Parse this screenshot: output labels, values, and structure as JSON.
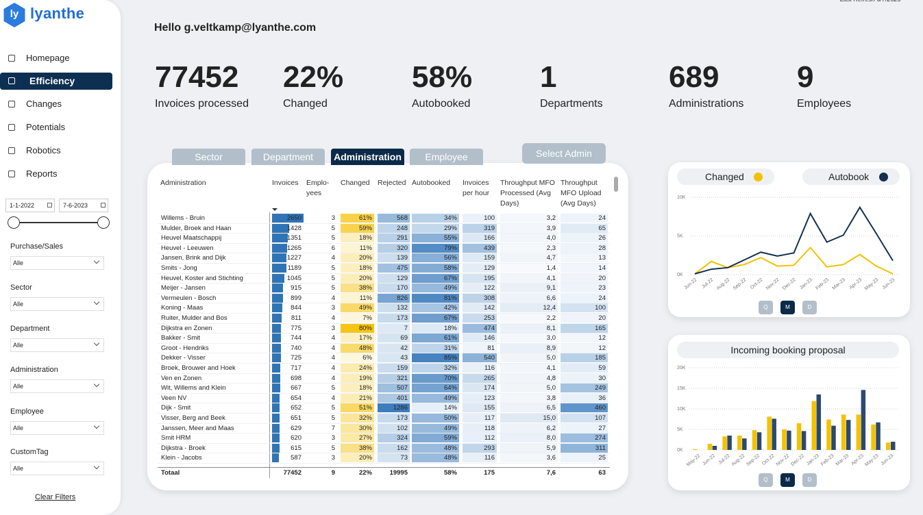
{
  "logo": {
    "icon": "ly",
    "name": "lyanthe"
  },
  "last_refresh": "Last Refresh 6/7/2023",
  "nav": [
    "Homepage",
    "Efficiency",
    "Changes",
    "Potentials",
    "Robotics",
    "Reports"
  ],
  "active_nav": 1,
  "date_range": [
    "1-1-2022",
    "7-6-2023"
  ],
  "filters": [
    {
      "label": "Purchase/Sales",
      "value": "Alle"
    },
    {
      "label": "Sector",
      "value": "Alle"
    },
    {
      "label": "Department",
      "value": "Alle"
    },
    {
      "label": "Administration",
      "value": "Alle"
    },
    {
      "label": "Employee",
      "value": "Alle"
    },
    {
      "label": "CustomTag",
      "value": "Alle"
    }
  ],
  "clear_filters": "Clear Filters",
  "greeting": "Hello g.veltkamp@lyanthe.com",
  "kpis": [
    {
      "value": "77452",
      "label": "Invoices processed"
    },
    {
      "value": "22%",
      "label": "Changed"
    },
    {
      "value": "58%",
      "label": "Autobooked"
    },
    {
      "value": "1",
      "label": "Departments"
    },
    {
      "value": "689",
      "label": "Administrations"
    },
    {
      "value": "9",
      "label": "Employees"
    }
  ],
  "tabs": [
    "Sector",
    "Department",
    "Administration",
    "Employee"
  ],
  "active_tab": 2,
  "select_button": "Select Admin",
  "table": {
    "columns": [
      "Administration",
      "Invoices",
      "Emplo-yees",
      "Changed",
      "Rejected",
      "Autobooked",
      "Invoices per hour",
      "Throughput MFO Processed (Avg Days)",
      "Throughput MFO Upload (Avg Days)"
    ],
    "rows": [
      [
        "Willems - Bruin",
        "2650",
        "3",
        "61%",
        "568",
        "34%",
        "100",
        "3,2",
        "24"
      ],
      [
        "Mulder, Broek and Haan",
        "1428",
        "5",
        "59%",
        "248",
        "29%",
        "319",
        "3,9",
        "65"
      ],
      [
        "Heuvel Maatschappij",
        "1351",
        "5",
        "18%",
        "291",
        "55%",
        "166",
        "4,0",
        "26"
      ],
      [
        "Heuvel - Leeuwen",
        "1265",
        "6",
        "11%",
        "320",
        "79%",
        "439",
        "2,3",
        "28"
      ],
      [
        "Jansen, Brink and Dijk",
        "1227",
        "4",
        "20%",
        "139",
        "56%",
        "159",
        "4,7",
        "13"
      ],
      [
        "Smits - Jong",
        "1189",
        "5",
        "18%",
        "475",
        "58%",
        "129",
        "1,4",
        "14"
      ],
      [
        "Heuvel, Koster and Stichting",
        "1045",
        "5",
        "20%",
        "129",
        "67%",
        "195",
        "4,1",
        "20"
      ],
      [
        "Meijer - Jansen",
        "915",
        "5",
        "38%",
        "170",
        "49%",
        "122",
        "9,1",
        "23"
      ],
      [
        "Vermeulen - Bosch",
        "899",
        "4",
        "11%",
        "826",
        "81%",
        "308",
        "6,6",
        "24"
      ],
      [
        "Koning - Maas",
        "844",
        "3",
        "49%",
        "132",
        "42%",
        "142",
        "12,4",
        "100"
      ],
      [
        "Ruiter, Mulder and Bos",
        "811",
        "4",
        "7%",
        "173",
        "67%",
        "253",
        "2,2",
        "20"
      ],
      [
        "Dijkstra en Zonen",
        "775",
        "3",
        "80%",
        "7",
        "18%",
        "474",
        "8,1",
        "165"
      ],
      [
        "Bakker - Smit",
        "744",
        "4",
        "17%",
        "69",
        "61%",
        "146",
        "3,0",
        "12"
      ],
      [
        "Groot - Hendriks",
        "740",
        "4",
        "48%",
        "42",
        "31%",
        "81",
        "8,9",
        "12"
      ],
      [
        "Dekker - Visser",
        "725",
        "4",
        "6%",
        "43",
        "85%",
        "540",
        "5,0",
        "185"
      ],
      [
        "Broek, Brouwer and Hoek",
        "717",
        "4",
        "24%",
        "159",
        "32%",
        "116",
        "4,1",
        "59"
      ],
      [
        "Ven en Zonen",
        "698",
        "4",
        "19%",
        "321",
        "70%",
        "265",
        "4,8",
        "30"
      ],
      [
        "Wit, Willems and Klein",
        "667",
        "5",
        "18%",
        "507",
        "64%",
        "174",
        "5,0",
        "249"
      ],
      [
        "Veen NV",
        "654",
        "4",
        "21%",
        "401",
        "49%",
        "123",
        "3,8",
        "36"
      ],
      [
        "Dijk - Smit",
        "652",
        "5",
        "51%",
        "1286",
        "14%",
        "155",
        "6,5",
        "460"
      ],
      [
        "Visser, Berg and Beek",
        "651",
        "5",
        "32%",
        "173",
        "50%",
        "117",
        "15,0",
        "107"
      ],
      [
        "Janssen, Meer and Maas",
        "629",
        "7",
        "30%",
        "102",
        "49%",
        "118",
        "6,2",
        "27"
      ],
      [
        "Smit HRM",
        "620",
        "3",
        "27%",
        "324",
        "59%",
        "112",
        "8,0",
        "274"
      ],
      [
        "Dijkstra - Broek",
        "615",
        "5",
        "38%",
        "162",
        "48%",
        "293",
        "5,9",
        "311"
      ],
      [
        "Klein - Jacobs",
        "587",
        "3",
        "20%",
        "73",
        "48%",
        "116",
        "3,6",
        "25"
      ]
    ],
    "total": [
      "Totaal",
      "77452",
      "9",
      "22%",
      "19995",
      "58%",
      "175",
      "7,6",
      "63"
    ]
  },
  "chart_data": [
    {
      "type": "line",
      "categories": [
        "Jun-22",
        "Jul-22",
        "Aug-22",
        "Sep-22",
        "Oct-22",
        "Nov-22",
        "Dec-22",
        "Jan-23",
        "Feb-23",
        "Mar-23",
        "Apr-23",
        "May-23",
        "Jun-23"
      ],
      "series": [
        {
          "name": "Changed",
          "color": "#f2c200",
          "values": [
            100,
            1700,
            900,
            1300,
            2200,
            1100,
            1200,
            3500,
            1000,
            1300,
            2600,
            1100,
            100
          ]
        },
        {
          "name": "Autobook",
          "color": "#13304f",
          "values": [
            100,
            700,
            900,
            1900,
            2900,
            2400,
            2800,
            7900,
            4200,
            5100,
            8700,
            5300,
            1800
          ]
        }
      ],
      "ylim": [
        0,
        10000
      ],
      "yticks": [
        {
          "value": 0,
          "label": "0K"
        },
        {
          "value": 5000,
          "label": "5K"
        },
        {
          "value": 10000,
          "label": "10K"
        }
      ],
      "grid": true,
      "buttons": [
        "Q",
        "M",
        "D"
      ],
      "active_button": 1
    },
    {
      "type": "bar",
      "title": "Incoming booking proposal",
      "categories": [
        "May-22",
        "Jun-22",
        "Jul-22",
        "Aug-22",
        "Sep-22",
        "Oct-22",
        "Nov-22",
        "Dec-22",
        "Jan-23",
        "Feb-23",
        "Mar-23",
        "Apr-23",
        "May-23",
        "Jun-23"
      ],
      "series": [
        {
          "color": "#f2c200",
          "values": [
            200,
            1500,
            3300,
            3500,
            4800,
            8100,
            5000,
            6500,
            11900,
            7400,
            8600,
            8600,
            6200,
            1800
          ]
        },
        {
          "color": "#2c4a6e",
          "values": [
            0,
            1000,
            3500,
            2800,
            4300,
            7600,
            4700,
            4600,
            13500,
            5900,
            7300,
            14600,
            6700,
            2000
          ]
        }
      ],
      "ylim": [
        0,
        20000
      ],
      "yticks": [
        {
          "value": 0,
          "label": "0K"
        },
        {
          "value": 5000,
          "label": "5K"
        },
        {
          "value": 10000,
          "label": "10K"
        },
        {
          "value": 15000,
          "label": "15K"
        },
        {
          "value": 20000,
          "label": "20K"
        }
      ],
      "grid": true,
      "buttons": [
        "Q",
        "M",
        "D"
      ],
      "active_button": 1
    }
  ]
}
